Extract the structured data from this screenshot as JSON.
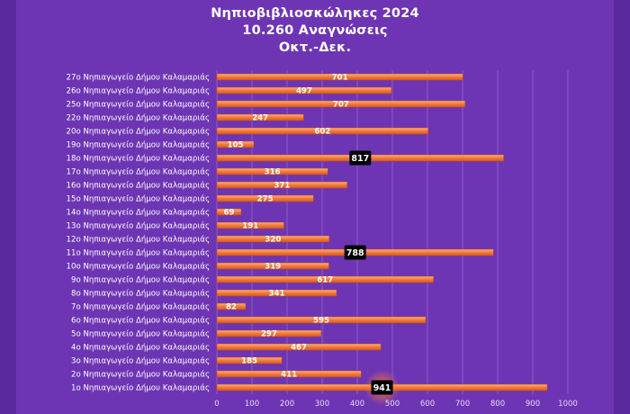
{
  "chart_data": {
    "type": "bar",
    "orientation": "horizontal",
    "title_lines": [
      "Νηπιοβιβλιοσκώληκες 2024",
      "10.260 Αναγνώσεις",
      "Οκτ.-Δεκ."
    ],
    "categories": [
      "27ο Νηπιαγωγείο Δήμου Καλαμαριάς",
      "26ο Νηπιαγωγείο Δήμου Καλαμαριάς",
      "25ο Νηπιαγωγείο Δήμου Καλαμαριάς",
      "22ο Νηπιαγωγείο Δήμου Καλαμαριάς",
      "20ο Νηπιαγωγείο Δήμου Καλαμαριάς",
      "19ο Νηπιαγωγείο Δήμου Καλαμαριάς",
      "18ο Νηπιαγωγείο Δήμου Καλαμαριάς",
      "17ο Νηπιαγωγείο Δήμου Καλαμαριάς",
      "16ο Νηπιαγωγείο Δήμου Καλαμαριάς",
      "15ο Νηπιαγωγείο Δήμου Καλαμαριάς",
      "14ο Νηπιαγωγείο Δήμου Καλαμαριάς",
      "13ο Νηπιαγωγείο Δήμου Καλαμαριάς",
      "12ο Νηπιαγωγείο Δήμου Καλαμαριάς",
      "11ο Νηπιαγωγείο Δήμου Καλαμαριάς",
      "10ο Νηπιαγωγείο Δήμου Καλαμαριάς",
      "9ο Νηπιαγωγείο Δήμου Καλαμαριάς",
      "8ο Νηπιαγωγείο Δήμου Καλαμαριάς",
      "7ο Νηπιαγωγείο Δήμου Καλαμαριάς",
      "6ο Νηπιαγωγείο Δήμου Καλαμαριάς",
      "5ο Νηπιαγωγείο Δήμου Καλαμαριάς",
      "4ο Νηπιαγωγείο Δήμου Καλαμαριάς",
      "3ο Νηπιαγωγείο Δήμου Καλαμαριάς",
      "2ο Νηπιαγωγείο Δήμου Καλαμαριάς",
      "1ο Νηπιαγωγείο Δήμου Καλαμαριάς"
    ],
    "values": [
      701,
      497,
      707,
      247,
      602,
      105,
      817,
      316,
      371,
      275,
      69,
      191,
      320,
      788,
      319,
      617,
      341,
      82,
      595,
      297,
      467,
      185,
      411,
      941
    ],
    "highlighted": [
      817,
      788,
      941
    ],
    "xlim": [
      0,
      1000
    ],
    "xticks": [
      0,
      100,
      200,
      300,
      400,
      500,
      600,
      700,
      800,
      900,
      1000
    ],
    "grid": true,
    "legend": "none",
    "colors": {
      "bar": "#f07a3c",
      "bar_highlight": "#ff9a5c",
      "label_box_highlight": "#000000",
      "background": "#6d35b4",
      "outer_background": "#5a2a9c",
      "gridline": "#8a5ac8",
      "text": "#ffffff"
    }
  }
}
